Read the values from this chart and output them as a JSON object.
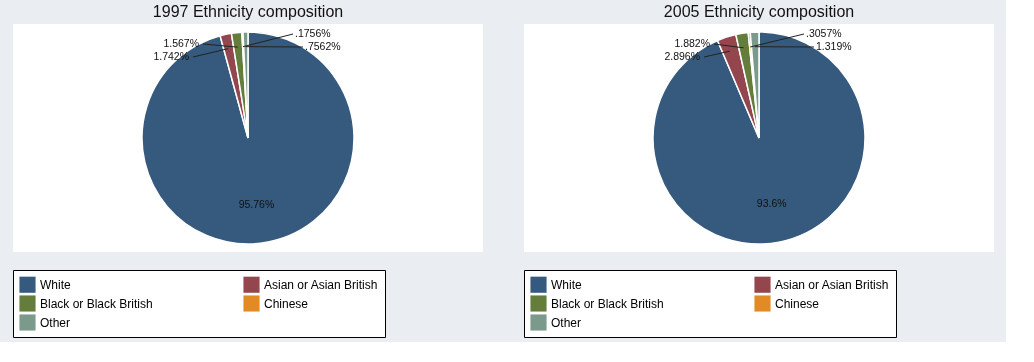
{
  "chart_data": [
    {
      "type": "pie",
      "title": "1997 Ethnicity composition",
      "categories": [
        "White",
        "Asian or Asian British",
        "Black or Black British",
        "Chinese",
        "Other"
      ],
      "values": [
        95.76,
        1.742,
        1.567,
        0.1756,
        0.7562
      ],
      "value_labels": [
        "95.76%",
        "1.742%",
        "1.567%",
        ".1756%",
        ".7562%"
      ],
      "colors": [
        "#355a7e",
        "#94464f",
        "#657d3a",
        "#e28b25",
        "#7c9a8c"
      ],
      "legend": "bottom"
    },
    {
      "type": "pie",
      "title": "2005 Ethnicity composition",
      "categories": [
        "White",
        "Asian or Asian British",
        "Black or Black British",
        "Chinese",
        "Other"
      ],
      "values": [
        93.6,
        2.896,
        1.882,
        0.3057,
        1.319
      ],
      "value_labels": [
        "93.6%",
        "2.896%",
        "1.882%",
        ".3057%",
        "1.319%"
      ],
      "colors": [
        "#355a7e",
        "#94464f",
        "#657d3a",
        "#e28b25",
        "#7c9a8c"
      ],
      "legend": "bottom"
    }
  ]
}
